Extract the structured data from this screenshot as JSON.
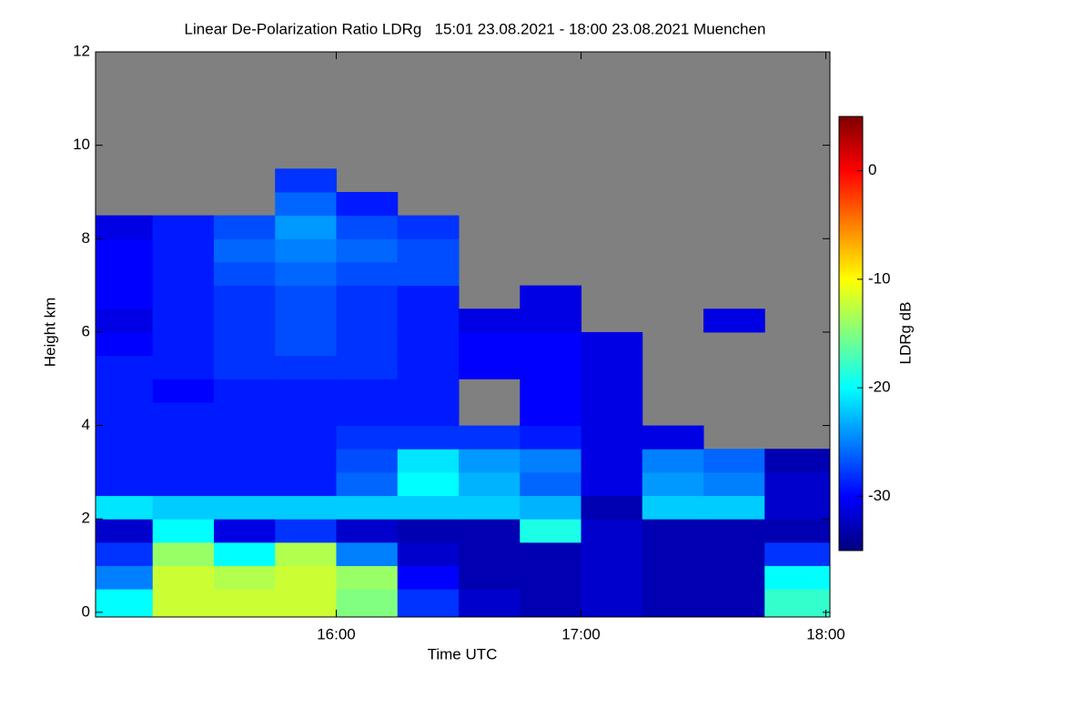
{
  "chart_data": {
    "type": "heatmap",
    "title": "Linear De-Polarization Ratio LDRg   15:01 23.08.2021 - 18:00 23.08.2021 Muenchen",
    "x_label": "Time UTC",
    "y_label": "Height km",
    "colorbar_label": "LDRg dB",
    "xlim": [
      15.0167,
      18.0167
    ],
    "xticks": [
      {
        "value": 16,
        "label": "16:00"
      },
      {
        "value": 17,
        "label": "17:00"
      },
      {
        "value": 18,
        "label": "18:00"
      }
    ],
    "ylim": [
      -0.1,
      12
    ],
    "yticks": [
      0,
      2,
      4,
      6,
      8,
      10,
      12
    ],
    "clim": [
      -35,
      5
    ],
    "cticks": [
      0,
      -10,
      -20,
      -30
    ],
    "colormap": [
      "#00007f",
      "#0000ff",
      "#0080ff",
      "#00ffff",
      "#80ff80",
      "#ffff00",
      "#ff8000",
      "#ff0000",
      "#7f0000"
    ],
    "nodata_color": "#808080",
    "x_edges": [
      15.0167,
      15.25,
      15.5,
      15.75,
      16,
      16.25,
      16.5,
      16.75,
      17,
      17.25,
      17.5,
      17.75,
      18.0167
    ],
    "y_edges": [
      0,
      0.5,
      1,
      1.5,
      2,
      2.5,
      3,
      3.5,
      4,
      4.5,
      5,
      5.5,
      6,
      6.5,
      7,
      7.5,
      8,
      8.5,
      9,
      9.5
    ],
    "z": [
      [
        -20,
        -12,
        -12,
        -12,
        -15,
        -28,
        -32,
        -33,
        -32,
        -33,
        -33,
        -18
      ],
      [
        -25,
        -12,
        -13,
        -12,
        -14,
        -30,
        -33,
        -33,
        -32,
        -33,
        -33,
        -20
      ],
      [
        -28,
        -14,
        -20,
        -13,
        -25,
        -32,
        -33,
        -33,
        -32,
        -33,
        -33,
        -28
      ],
      [
        -32,
        -20,
        -31,
        -28,
        -32,
        -33,
        -33,
        -19,
        -32,
        -33,
        -33,
        -33
      ],
      [
        -21,
        -22,
        -22,
        -22,
        -22,
        -22,
        -22,
        -23,
        -33,
        -22,
        -22,
        -32
      ],
      [
        -29,
        -29,
        -29,
        -29,
        -26,
        -20,
        -23,
        -26,
        -31,
        -24,
        -25,
        -32
      ],
      [
        -29,
        -29,
        -29,
        -29,
        -27,
        -21,
        -24,
        -25,
        -31,
        -25,
        -26,
        -33
      ],
      [
        -29,
        -29,
        -29,
        -29,
        -28,
        -28,
        -28,
        -29,
        -31,
        -31,
        null,
        null
      ],
      [
        -29,
        -29,
        -29,
        -29,
        -29,
        -29,
        null,
        -30,
        -31,
        null,
        null,
        null
      ],
      [
        -29,
        -30,
        -29,
        -29,
        -29,
        -29,
        null,
        -30,
        -31,
        null,
        null,
        null
      ],
      [
        -29,
        -29,
        -28,
        -28,
        -28,
        -29,
        -30,
        -30,
        -31,
        null,
        null,
        null
      ],
      [
        -30,
        -29,
        -28,
        -27,
        -28,
        -29,
        -30,
        -30,
        -31,
        null,
        null,
        null
      ],
      [
        -31,
        -29,
        -28,
        -27,
        -28,
        -29,
        -31,
        -31,
        null,
        null,
        -31,
        null
      ],
      [
        -30,
        -29,
        -28,
        -27,
        -28,
        -29,
        null,
        -31,
        null,
        null,
        null,
        null
      ],
      [
        -30,
        -29,
        -27,
        -26,
        -27,
        -27,
        null,
        null,
        null,
        null,
        null,
        null
      ],
      [
        -30,
        -29,
        -26,
        -25,
        -26,
        -27,
        null,
        null,
        null,
        null,
        null,
        null
      ],
      [
        -31,
        -29,
        -27,
        -24,
        -27,
        -28,
        null,
        null,
        null,
        null,
        null,
        null
      ],
      [
        null,
        null,
        null,
        -26,
        -29,
        null,
        null,
        null,
        null,
        null,
        null,
        null
      ],
      [
        null,
        null,
        null,
        -28,
        null,
        null,
        null,
        null,
        null,
        null,
        null,
        null
      ]
    ]
  }
}
